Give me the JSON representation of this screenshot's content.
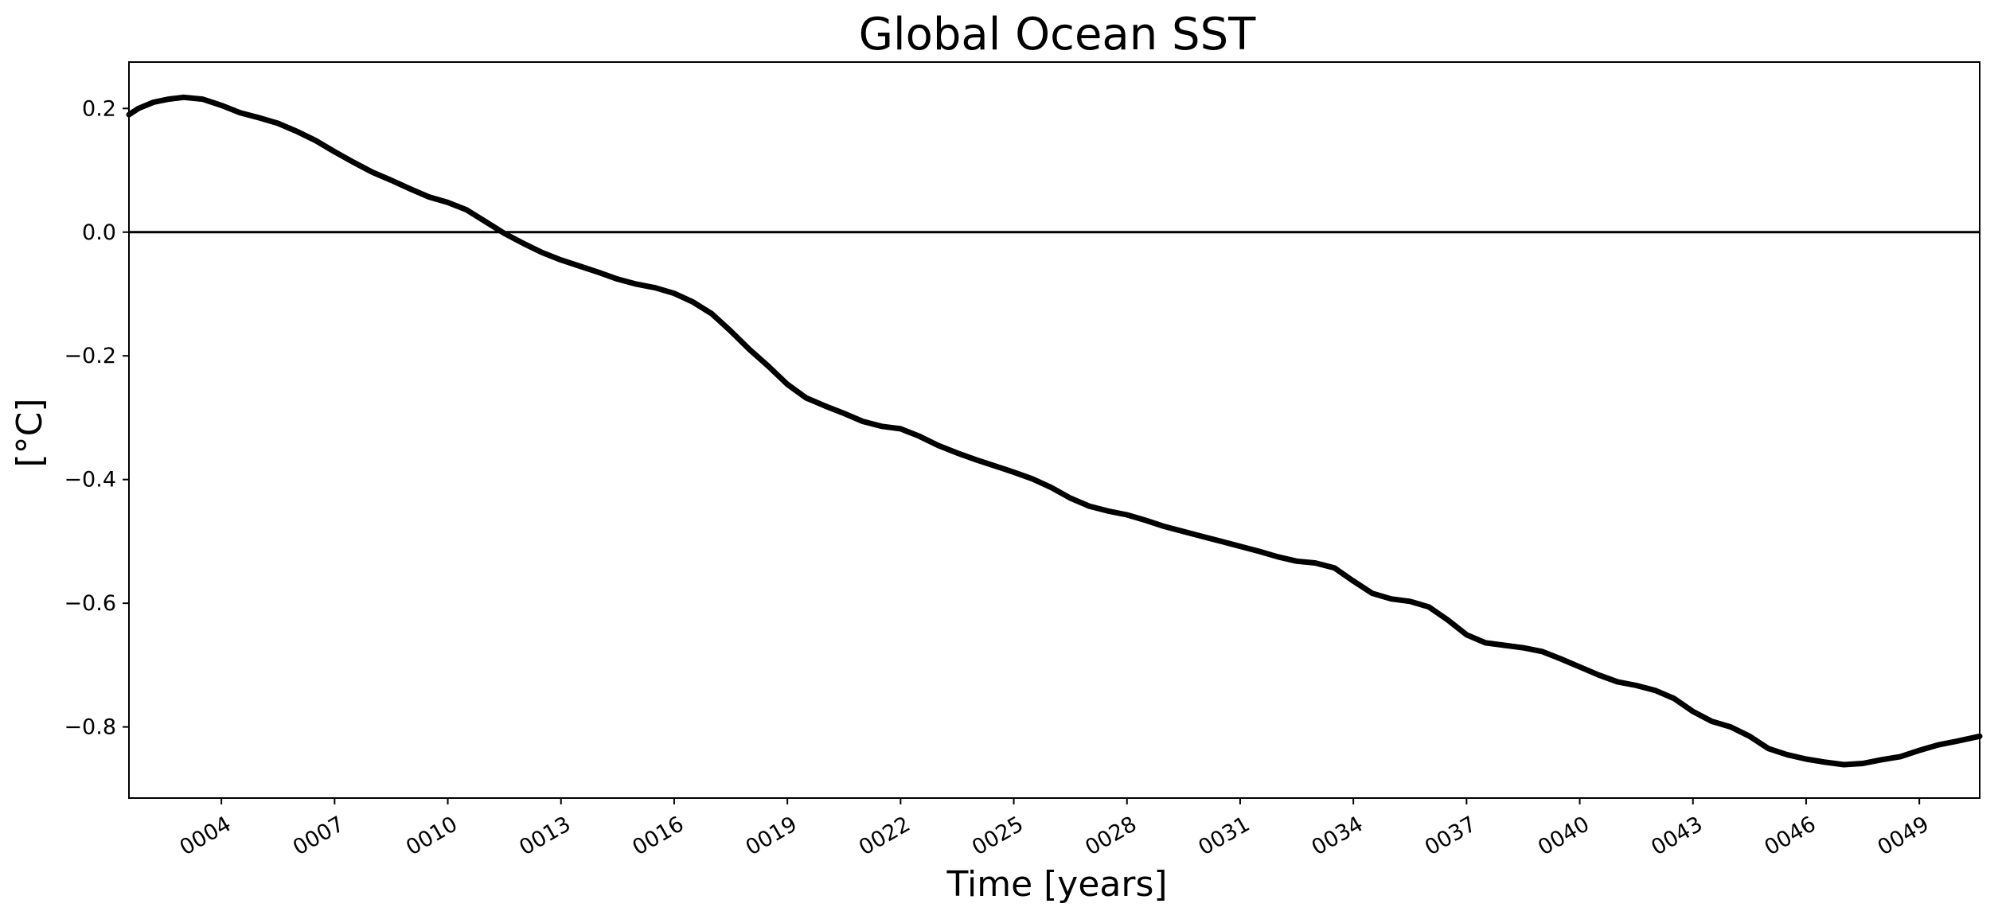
{
  "chart_data": {
    "type": "line",
    "title": "Global Ocean SST",
    "xlabel": "Time [years]",
    "ylabel": "[°C]",
    "xlim": [
      1.55,
      50.6
    ],
    "ylim": [
      -0.915,
      0.275
    ],
    "xticks": [
      {
        "value": 4,
        "label": "0004"
      },
      {
        "value": 7,
        "label": "0007"
      },
      {
        "value": 10,
        "label": "0010"
      },
      {
        "value": 13,
        "label": "0013"
      },
      {
        "value": 16,
        "label": "0016"
      },
      {
        "value": 19,
        "label": "0019"
      },
      {
        "value": 22,
        "label": "0022"
      },
      {
        "value": 25,
        "label": "0025"
      },
      {
        "value": 28,
        "label": "0028"
      },
      {
        "value": 31,
        "label": "0031"
      },
      {
        "value": 34,
        "label": "0034"
      },
      {
        "value": 37,
        "label": "0037"
      },
      {
        "value": 40,
        "label": "0040"
      },
      {
        "value": 43,
        "label": "0043"
      },
      {
        "value": 46,
        "label": "0046"
      },
      {
        "value": 49,
        "label": "0049"
      }
    ],
    "yticks": [
      {
        "value": 0.2,
        "label": "0.2"
      },
      {
        "value": 0.0,
        "label": "0.0"
      },
      {
        "value": -0.2,
        "label": "−0.2"
      },
      {
        "value": -0.4,
        "label": "−0.4"
      },
      {
        "value": -0.6,
        "label": "−0.6"
      },
      {
        "value": -0.8,
        "label": "−0.8"
      }
    ],
    "grid": false,
    "reference_line": {
      "y": 0.0,
      "color": "#000000"
    },
    "series": [
      {
        "color": "#000000",
        "x": [
          1.55,
          1.8,
          2.2,
          2.6,
          3.0,
          3.5,
          4.0,
          4.5,
          5.0,
          5.5,
          6.0,
          6.5,
          7.0,
          7.5,
          8.0,
          8.5,
          9.0,
          9.5,
          10.0,
          10.5,
          11.0,
          11.5,
          12.0,
          12.5,
          13.0,
          13.5,
          14.0,
          14.5,
          15.0,
          15.5,
          16.0,
          16.5,
          17.0,
          17.5,
          18.0,
          18.5,
          19.0,
          19.5,
          20.0,
          20.5,
          21.0,
          21.5,
          22.0,
          22.5,
          23.0,
          23.5,
          24.0,
          24.5,
          25.0,
          25.5,
          26.0,
          26.5,
          27.0,
          27.5,
          28.0,
          28.5,
          29.0,
          29.5,
          30.0,
          30.5,
          31.0,
          31.5,
          32.0,
          32.5,
          33.0,
          33.5,
          34.0,
          34.5,
          35.0,
          35.5,
          36.0,
          36.5,
          37.0,
          37.5,
          38.0,
          38.5,
          39.0,
          39.5,
          40.0,
          40.5,
          41.0,
          41.5,
          42.0,
          42.5,
          43.0,
          43.5,
          44.0,
          44.5,
          45.0,
          45.5,
          46.0,
          46.5,
          47.0,
          47.5,
          48.0,
          48.5,
          49.0,
          49.5,
          50.0,
          50.6
        ],
        "y": [
          0.19,
          0.2,
          0.21,
          0.215,
          0.218,
          0.215,
          0.205,
          0.193,
          0.185,
          0.176,
          0.163,
          0.148,
          0.13,
          0.113,
          0.097,
          0.084,
          0.07,
          0.057,
          0.048,
          0.036,
          0.017,
          -0.002,
          -0.018,
          -0.033,
          -0.045,
          -0.055,
          -0.065,
          -0.076,
          -0.084,
          -0.09,
          -0.099,
          -0.113,
          -0.132,
          -0.16,
          -0.19,
          -0.217,
          -0.246,
          -0.268,
          -0.281,
          -0.293,
          -0.306,
          -0.314,
          -0.318,
          -0.33,
          -0.345,
          -0.357,
          -0.368,
          -0.378,
          -0.388,
          -0.399,
          -0.413,
          -0.43,
          -0.443,
          -0.451,
          -0.457,
          -0.466,
          -0.476,
          -0.484,
          -0.492,
          -0.5,
          -0.508,
          -0.516,
          -0.525,
          -0.532,
          -0.535,
          -0.543,
          -0.564,
          -0.584,
          -0.593,
          -0.597,
          -0.606,
          -0.627,
          -0.651,
          -0.664,
          -0.668,
          -0.672,
          -0.678,
          -0.69,
          -0.703,
          -0.716,
          -0.727,
          -0.733,
          -0.741,
          -0.754,
          -0.775,
          -0.791,
          -0.8,
          -0.815,
          -0.835,
          -0.845,
          -0.852,
          -0.857,
          -0.861,
          -0.859,
          -0.853,
          -0.848,
          -0.838,
          -0.829,
          -0.823,
          -0.815
        ]
      }
    ]
  }
}
